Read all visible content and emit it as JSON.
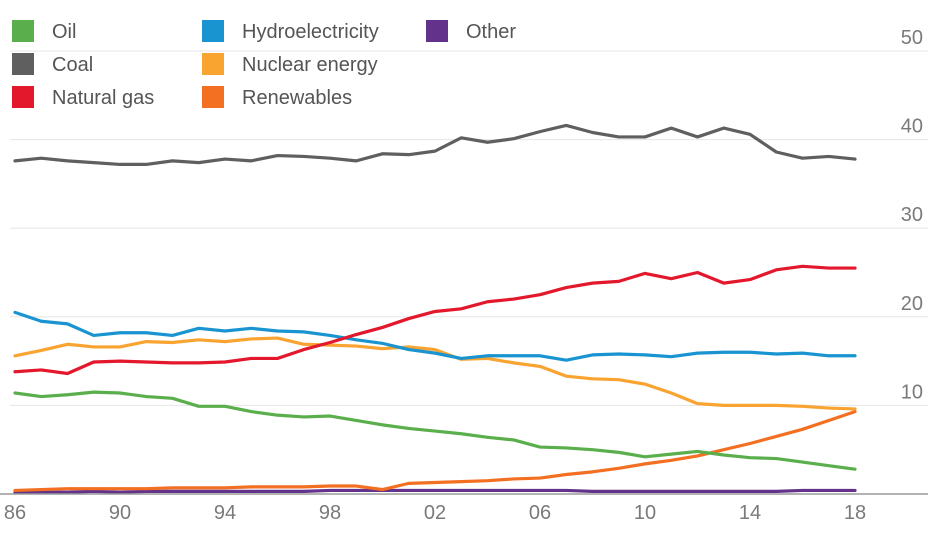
{
  "chart_data": {
    "type": "line",
    "title": "",
    "xlabel": "",
    "ylabel": "",
    "x": [
      1986,
      1987,
      1988,
      1989,
      1990,
      1991,
      1992,
      1993,
      1994,
      1995,
      1996,
      1997,
      1998,
      1999,
      2000,
      2001,
      2002,
      2003,
      2004,
      2005,
      2006,
      2007,
      2008,
      2009,
      2010,
      2011,
      2012,
      2013,
      2014,
      2015,
      2016,
      2017,
      2018
    ],
    "xlim": [
      1986,
      2020
    ],
    "ylim": [
      0,
      50
    ],
    "x_ticks": [
      1986,
      1990,
      1994,
      1998,
      2002,
      2006,
      2010,
      2014,
      2018
    ],
    "x_tick_labels": [
      "86",
      "90",
      "94",
      "98",
      "02",
      "06",
      "10",
      "14",
      "18"
    ],
    "y_ticks": [
      10,
      20,
      30,
      40,
      50
    ],
    "y_tick_labels": [
      "10",
      "20",
      "30",
      "40",
      "50"
    ],
    "grid": true,
    "legend_position": "top-left",
    "series": [
      {
        "name": "Oil",
        "color": "#5aaf4c",
        "values": [
          11.4,
          11.0,
          11.2,
          11.5,
          11.4,
          11.0,
          10.8,
          9.9,
          9.9,
          9.3,
          8.9,
          8.7,
          8.8,
          8.3,
          7.8,
          7.4,
          7.1,
          6.8,
          6.4,
          6.1,
          5.3,
          5.2,
          5.0,
          4.7,
          4.2,
          4.5,
          4.8,
          4.4,
          4.1,
          4.0,
          3.6,
          3.2,
          2.8
        ]
      },
      {
        "name": "Coal",
        "color": "#5f5f5f",
        "values": [
          37.6,
          37.9,
          37.6,
          37.4,
          37.2,
          37.2,
          37.6,
          37.4,
          37.8,
          37.6,
          38.2,
          38.1,
          37.9,
          37.6,
          38.4,
          38.3,
          38.7,
          40.2,
          39.7,
          40.1,
          40.9,
          41.6,
          40.8,
          40.3,
          40.3,
          41.3,
          40.3,
          41.3,
          40.6,
          38.6,
          37.9,
          38.1,
          37.8
        ]
      },
      {
        "name": "Natural gas",
        "color": "#e3182d",
        "values": [
          13.8,
          14.0,
          13.6,
          14.9,
          15.0,
          14.9,
          14.8,
          14.8,
          14.9,
          15.3,
          15.3,
          16.3,
          17.1,
          18.0,
          18.8,
          19.8,
          20.6,
          20.9,
          21.7,
          22.0,
          22.5,
          23.3,
          23.8,
          24.0,
          24.9,
          24.3,
          25.0,
          23.8,
          24.2,
          25.3,
          25.7,
          25.5,
          25.5
        ]
      },
      {
        "name": "Hydroelectricity",
        "color": "#1a94d0",
        "values": [
          20.5,
          19.5,
          19.2,
          17.9,
          18.2,
          18.2,
          17.9,
          18.7,
          18.4,
          18.7,
          18.4,
          18.3,
          17.9,
          17.4,
          17.0,
          16.3,
          15.9,
          15.3,
          15.6,
          15.6,
          15.6,
          15.1,
          15.7,
          15.8,
          15.7,
          15.5,
          15.9,
          16.0,
          16.0,
          15.8,
          15.9,
          15.6,
          15.6
        ]
      },
      {
        "name": "Nuclear energy",
        "color": "#f9a331",
        "values": [
          15.6,
          16.2,
          16.9,
          16.6,
          16.6,
          17.2,
          17.1,
          17.4,
          17.2,
          17.5,
          17.6,
          16.9,
          16.8,
          16.7,
          16.4,
          16.6,
          16.3,
          15.2,
          15.3,
          14.8,
          14.4,
          13.3,
          13.0,
          12.9,
          12.4,
          11.4,
          10.2,
          10.0,
          10.0,
          10.0,
          9.9,
          9.7,
          9.6
        ]
      },
      {
        "name": "Renewables",
        "color": "#f36f21",
        "values": [
          0.4,
          0.5,
          0.6,
          0.6,
          0.6,
          0.6,
          0.7,
          0.7,
          0.7,
          0.8,
          0.8,
          0.8,
          0.9,
          0.9,
          0.5,
          1.2,
          1.3,
          1.4,
          1.5,
          1.7,
          1.8,
          2.2,
          2.5,
          2.9,
          3.4,
          3.8,
          4.3,
          5.0,
          5.7,
          6.5,
          7.3,
          8.3,
          9.3
        ]
      },
      {
        "name": "Other",
        "color": "#63328a",
        "values": [
          0.2,
          0.2,
          0.2,
          0.3,
          0.2,
          0.3,
          0.3,
          0.3,
          0.3,
          0.3,
          0.3,
          0.3,
          0.4,
          0.4,
          0.4,
          0.4,
          0.4,
          0.4,
          0.4,
          0.4,
          0.4,
          0.4,
          0.3,
          0.3,
          0.3,
          0.3,
          0.3,
          0.3,
          0.3,
          0.3,
          0.4,
          0.4,
          0.4
        ]
      }
    ]
  }
}
